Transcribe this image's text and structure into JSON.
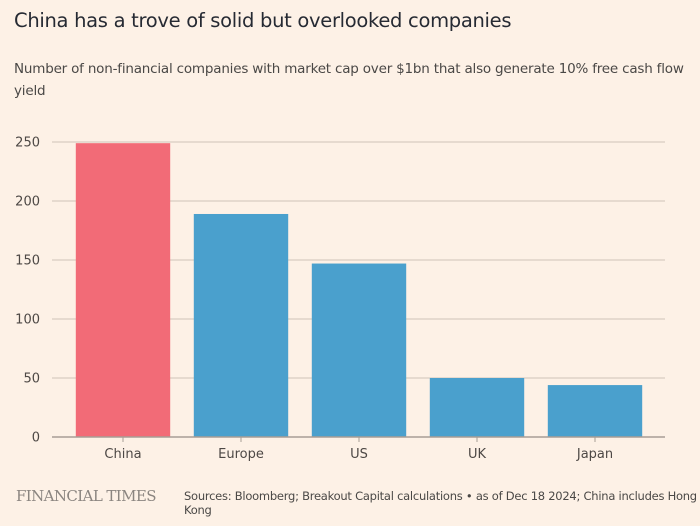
{
  "header": {
    "title": "China has a trove of solid but overlooked companies",
    "subtitle": "Number of non-financial companies with market cap over $1bn that also generate 10% free cash flow yield"
  },
  "footer": {
    "brand": "FINANCIAL TIMES",
    "source": "Sources: Bloomberg; Breakout Capital calculations • as of Dec 18 2024; China includes Hong Kong"
  },
  "colors": {
    "highlight": "#f26b77",
    "default": "#4aa0cd",
    "grid": "#d9cdc1",
    "axis": "#a89e95",
    "background": "#fdf1e6"
  },
  "chart_data": {
    "type": "bar",
    "title": "China has a trove of solid but overlooked companies",
    "subtitle": "Number of non-financial companies with market cap over $1bn that also generate 10% free cash flow yield",
    "xlabel": "",
    "ylabel": "",
    "categories": [
      "China",
      "Europe",
      "US",
      "UK",
      "Japan"
    ],
    "values": [
      249,
      189,
      147,
      50,
      44
    ],
    "highlighted": [
      "China"
    ],
    "ylim": [
      0,
      250
    ],
    "yticks": [
      0,
      50,
      100,
      150,
      200,
      250
    ],
    "grid": true,
    "legend": "none"
  }
}
